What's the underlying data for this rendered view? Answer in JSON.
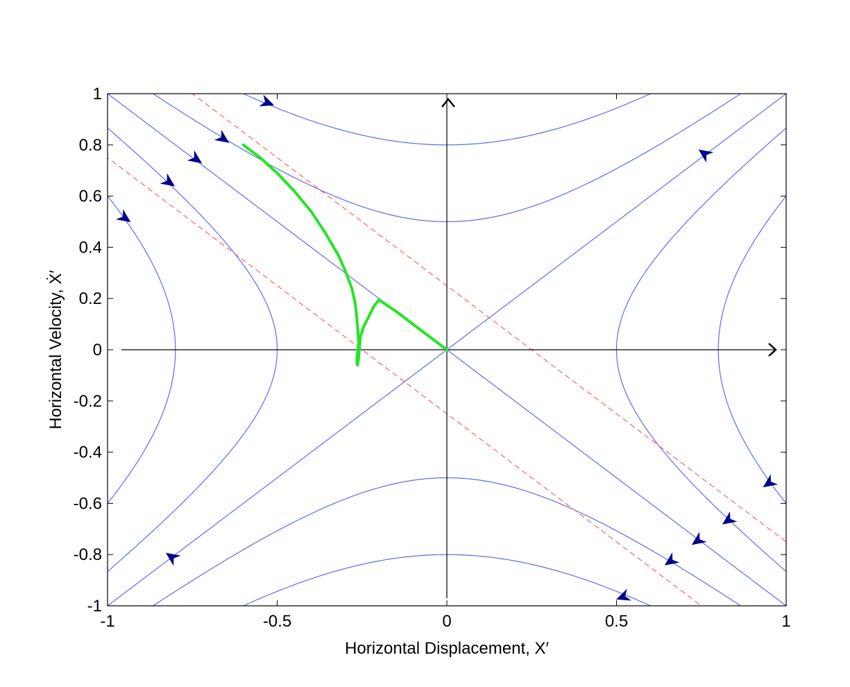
{
  "chart_data": {
    "type": "line",
    "title": "",
    "xlabel": "Horizontal Displacement, X′",
    "ylabel": "Horizontal Velocity, Ẋ′",
    "xlim": [
      -1,
      1
    ],
    "ylim": [
      -1,
      1
    ],
    "x_ticks": [
      -1,
      -0.5,
      0,
      0.5,
      1
    ],
    "x_tick_labels": [
      "-1",
      "-0.5",
      "0",
      "0.5",
      "1"
    ],
    "y_ticks": [
      -1,
      -0.8,
      -0.6,
      -0.4,
      -0.2,
      0,
      0.2,
      0.4,
      0.6,
      0.8,
      1
    ],
    "y_tick_labels": [
      "-1",
      "-0.8",
      "-0.6",
      "-0.4",
      "-0.2",
      "0",
      "0.2",
      "0.4",
      "0.6",
      "0.8",
      "1"
    ],
    "grid": false,
    "colors": {
      "phase_curves": "#5b6bf0",
      "direction_arrows": "#00008b",
      "boundary_lines": "#ff6b6b",
      "trajectory": "#22e622",
      "axes": "#000000"
    },
    "phase_portrait": {
      "separatrices": [
        "y = x",
        "y = -x"
      ],
      "hyperbola_levels": [
        0.5,
        0.8
      ]
    },
    "boundary_lines": [
      {
        "slope": -1,
        "intercept": 0.25
      },
      {
        "slope": -1,
        "intercept": -0.25
      }
    ],
    "trajectory": {
      "x": [
        -0.6,
        -0.55,
        -0.5,
        -0.45,
        -0.4,
        -0.36,
        -0.32,
        -0.3,
        -0.28,
        -0.27,
        -0.265,
        -0.262,
        -0.26,
        -0.262,
        -0.265,
        -0.265,
        -0.263,
        -0.26,
        -0.258,
        -0.255,
        -0.245,
        -0.23,
        -0.215,
        -0.2,
        -0.15,
        -0.1,
        -0.05,
        0
      ],
      "y": [
        0.8,
        0.75,
        0.69,
        0.62,
        0.54,
        0.46,
        0.37,
        0.31,
        0.24,
        0.18,
        0.12,
        0.07,
        0.03,
        0.0,
        -0.03,
        -0.055,
        -0.06,
        -0.03,
        0.0,
        0.05,
        0.09,
        0.13,
        0.17,
        0.195,
        0.15,
        0.1,
        0.05,
        0.0
      ]
    },
    "direction_markers": [
      {
        "x": -0.53,
        "y": 0.965,
        "angle_deg": 20
      },
      {
        "x": -0.66,
        "y": 0.825,
        "angle_deg": 35
      },
      {
        "x": -0.74,
        "y": 0.745,
        "angle_deg": 35
      },
      {
        "x": -0.82,
        "y": 0.655,
        "angle_deg": 35
      },
      {
        "x": -0.95,
        "y": 0.515,
        "angle_deg": 35
      },
      {
        "x": 0.76,
        "y": 0.765,
        "angle_deg": 215
      },
      {
        "x": 0.95,
        "y": -0.52,
        "angle_deg": 145
      },
      {
        "x": 0.83,
        "y": -0.665,
        "angle_deg": 145
      },
      {
        "x": 0.74,
        "y": -0.745,
        "angle_deg": 145
      },
      {
        "x": 0.66,
        "y": -0.825,
        "angle_deg": 145
      },
      {
        "x": 0.52,
        "y": -0.965,
        "angle_deg": 160
      },
      {
        "x": -0.81,
        "y": -0.81,
        "angle_deg": 215
      }
    ]
  }
}
